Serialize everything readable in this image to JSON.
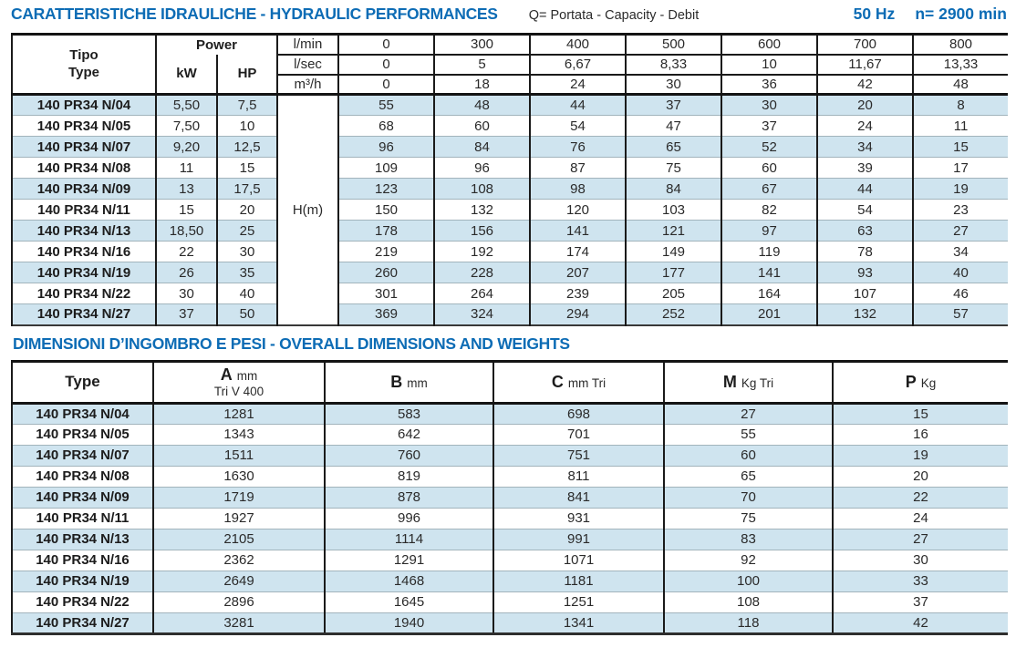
{
  "colors": {
    "accent_blue": "#0d6cb5",
    "row_alt_blue": "#cfe4ef",
    "border_dark": "#1a1a1a",
    "row_separator": "#a2b4bc"
  },
  "header": {
    "title": "CARATTERISTICHE IDRAULICHE - HYDRAULIC PERFORMANCES",
    "subtitle": "Q= Portata - Capacity - Debit",
    "frequency": "50 Hz",
    "speed": "n= 2900 min"
  },
  "hydraulic_table": {
    "tipo_label_line1": "Tipo",
    "tipo_label_line2": "Type",
    "power_label": "Power",
    "kw_label": "kW",
    "hp_label": "HP",
    "head_label": "H(m)",
    "flow_rows": [
      {
        "unit": "l/min",
        "values": [
          "0",
          "300",
          "400",
          "500",
          "600",
          "700",
          "800"
        ]
      },
      {
        "unit": "l/sec",
        "values": [
          "0",
          "5",
          "6,67",
          "8,33",
          "10",
          "11,67",
          "13,33"
        ]
      },
      {
        "unit": "m³/h",
        "values": [
          "0",
          "18",
          "24",
          "30",
          "36",
          "42",
          "48"
        ]
      }
    ],
    "rows": [
      {
        "model": "140 PR34 N/04",
        "kw": "5,50",
        "hp": "7,5",
        "h": [
          "55",
          "48",
          "44",
          "37",
          "30",
          "20",
          "8"
        ]
      },
      {
        "model": "140 PR34 N/05",
        "kw": "7,50",
        "hp": "10",
        "h": [
          "68",
          "60",
          "54",
          "47",
          "37",
          "24",
          "11"
        ]
      },
      {
        "model": "140 PR34 N/07",
        "kw": "9,20",
        "hp": "12,5",
        "h": [
          "96",
          "84",
          "76",
          "65",
          "52",
          "34",
          "15"
        ]
      },
      {
        "model": "140 PR34 N/08",
        "kw": "11",
        "hp": "15",
        "h": [
          "109",
          "96",
          "87",
          "75",
          "60",
          "39",
          "17"
        ]
      },
      {
        "model": "140 PR34 N/09",
        "kw": "13",
        "hp": "17,5",
        "h": [
          "123",
          "108",
          "98",
          "84",
          "67",
          "44",
          "19"
        ]
      },
      {
        "model": "140 PR34 N/11",
        "kw": "15",
        "hp": "20",
        "h": [
          "150",
          "132",
          "120",
          "103",
          "82",
          "54",
          "23"
        ]
      },
      {
        "model": "140 PR34 N/13",
        "kw": "18,50",
        "hp": "25",
        "h": [
          "178",
          "156",
          "141",
          "121",
          "97",
          "63",
          "27"
        ]
      },
      {
        "model": "140 PR34 N/16",
        "kw": "22",
        "hp": "30",
        "h": [
          "219",
          "192",
          "174",
          "149",
          "119",
          "78",
          "34"
        ]
      },
      {
        "model": "140 PR34 N/19",
        "kw": "26",
        "hp": "35",
        "h": [
          "260",
          "228",
          "207",
          "177",
          "141",
          "93",
          "40"
        ]
      },
      {
        "model": "140 PR34 N/22",
        "kw": "30",
        "hp": "40",
        "h": [
          "301",
          "264",
          "239",
          "205",
          "164",
          "107",
          "46"
        ]
      },
      {
        "model": "140 PR34 N/27",
        "kw": "37",
        "hp": "50",
        "h": [
          "369",
          "324",
          "294",
          "252",
          "201",
          "132",
          "57"
        ]
      }
    ]
  },
  "dimensions_title": "DIMENSIONI D’INGOMBRO E PESI - OVERALL DIMENSIONS AND WEIGHTS",
  "dimensions_table": {
    "columns": [
      {
        "main": "Type",
        "unit": "",
        "sub": ""
      },
      {
        "main": "A",
        "unit": "mm",
        "sub": "Tri V 400"
      },
      {
        "main": "B",
        "unit": "mm",
        "sub": ""
      },
      {
        "main": "C",
        "unit": "mm Tri",
        "sub": ""
      },
      {
        "main": "M",
        "unit": "Kg Tri",
        "sub": ""
      },
      {
        "main": "P",
        "unit": "Kg",
        "sub": ""
      }
    ],
    "rows": [
      {
        "model": "140 PR34 N/04",
        "values": [
          "1281",
          "583",
          "698",
          "27",
          "15"
        ]
      },
      {
        "model": "140 PR34 N/05",
        "values": [
          "1343",
          "642",
          "701",
          "55",
          "16"
        ]
      },
      {
        "model": "140 PR34 N/07",
        "values": [
          "1511",
          "760",
          "751",
          "60",
          "19"
        ]
      },
      {
        "model": "140 PR34 N/08",
        "values": [
          "1630",
          "819",
          "811",
          "65",
          "20"
        ]
      },
      {
        "model": "140 PR34 N/09",
        "values": [
          "1719",
          "878",
          "841",
          "70",
          "22"
        ]
      },
      {
        "model": "140 PR34 N/11",
        "values": [
          "1927",
          "996",
          "931",
          "75",
          "24"
        ]
      },
      {
        "model": "140 PR34 N/13",
        "values": [
          "2105",
          "1114",
          "991",
          "83",
          "27"
        ]
      },
      {
        "model": "140 PR34 N/16",
        "values": [
          "2362",
          "1291",
          "1071",
          "92",
          "30"
        ]
      },
      {
        "model": "140 PR34 N/19",
        "values": [
          "2649",
          "1468",
          "1181",
          "100",
          "33"
        ]
      },
      {
        "model": "140 PR34 N/22",
        "values": [
          "2896",
          "1645",
          "1251",
          "108",
          "37"
        ]
      },
      {
        "model": "140 PR34 N/27",
        "values": [
          "3281",
          "1940",
          "1341",
          "118",
          "42"
        ]
      }
    ]
  }
}
